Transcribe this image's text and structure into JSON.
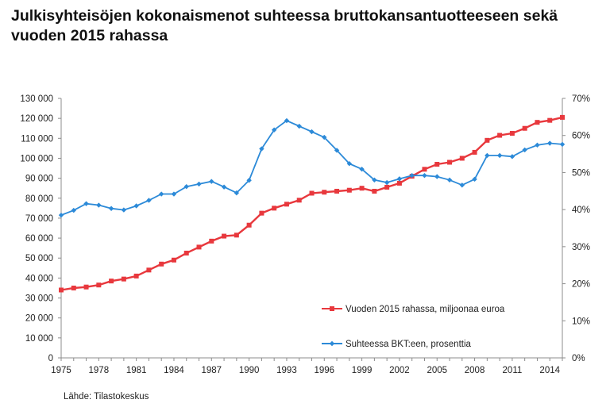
{
  "title": "Julkisyhteisöjen kokonaismenot suhteessa bruttokansantuotteeseen sekä vuoden 2015 rahassa",
  "source": "Lähde: Tilastokeskus",
  "chart_data": {
    "type": "line",
    "x": [
      1975,
      1976,
      1977,
      1978,
      1979,
      1980,
      1981,
      1982,
      1983,
      1984,
      1985,
      1986,
      1987,
      1988,
      1989,
      1990,
      1991,
      1992,
      1993,
      1994,
      1995,
      1996,
      1997,
      1998,
      1999,
      2000,
      2001,
      2002,
      2003,
      2004,
      2005,
      2006,
      2007,
      2008,
      2009,
      2010,
      2011,
      2012,
      2013,
      2014,
      2015
    ],
    "x_ticks": [
      "1975",
      "1978",
      "1981",
      "1984",
      "1987",
      "1990",
      "1993",
      "1996",
      "1999",
      "2002",
      "2005",
      "2008",
      "2011",
      "2014"
    ],
    "y_left_ticks": [
      "0",
      "10 000",
      "20 000",
      "30 000",
      "40 000",
      "50 000",
      "60 000",
      "70 000",
      "80 000",
      "90 000",
      "100 000",
      "110 000",
      "120 000",
      "130 000"
    ],
    "y_right_ticks": [
      "0%",
      "10%",
      "20%",
      "30%",
      "40%",
      "50%",
      "60%",
      "70%"
    ],
    "ylim_left": [
      0,
      130000
    ],
    "ylim_right": [
      0,
      70
    ],
    "grid": false,
    "legend_position": "bottom-right",
    "series": [
      {
        "name": "Vuoden 2015 rahassa, miljoonaa euroa",
        "axis": "left",
        "color": "#e8383d",
        "marker": "square",
        "values": [
          34000,
          35000,
          35500,
          36500,
          38500,
          39500,
          41000,
          44000,
          47000,
          49000,
          52500,
          55500,
          58500,
          61000,
          61500,
          66500,
          72500,
          75000,
          77000,
          79000,
          82500,
          83000,
          83500,
          84000,
          85000,
          83500,
          85500,
          87500,
          91000,
          94500,
          97000,
          98000,
          100000,
          103000,
          109000,
          111500,
          112500,
          115000,
          118000,
          119000,
          120500
        ]
      },
      {
        "name": "Suhteessa BKT:een, prosenttia",
        "axis": "right",
        "color": "#2c8ad8",
        "marker": "diamond",
        "values": [
          38.5,
          39.8,
          41.6,
          41.2,
          40.3,
          39.9,
          41.0,
          42.5,
          44.2,
          44.2,
          46.2,
          46.9,
          47.6,
          46.1,
          44.5,
          47.9,
          56.4,
          61.5,
          64.0,
          62.5,
          61.0,
          59.5,
          56.0,
          52.4,
          50.9,
          48.0,
          47.3,
          48.3,
          49.2,
          49.2,
          48.9,
          48.0,
          46.6,
          48.2,
          54.6,
          54.6,
          54.3,
          56.1,
          57.4,
          57.9,
          57.6
        ]
      }
    ]
  }
}
